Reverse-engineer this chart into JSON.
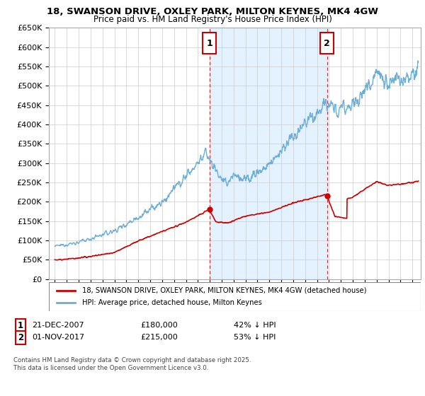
{
  "title1": "18, SWANSON DRIVE, OXLEY PARK, MILTON KEYNES, MK4 4GW",
  "title2": "Price paid vs. HM Land Registry's House Price Index (HPI)",
  "ylabel_ticks": [
    "£0",
    "£50K",
    "£100K",
    "£150K",
    "£200K",
    "£250K",
    "£300K",
    "£350K",
    "£400K",
    "£450K",
    "£500K",
    "£550K",
    "£600K",
    "£650K"
  ],
  "ytick_values": [
    0,
    50000,
    100000,
    150000,
    200000,
    250000,
    300000,
    350000,
    400000,
    450000,
    500000,
    550000,
    600000,
    650000
  ],
  "hpi_color": "#6baed6",
  "hpi_fill_color": "#c6dbef",
  "price_color": "#cc0000",
  "sale1_date": 2007.97,
  "sale1_price": 180000,
  "sale1_label": "1",
  "sale2_date": 2017.84,
  "sale2_price": 215000,
  "sale2_label": "2",
  "legend_property": "18, SWANSON DRIVE, OXLEY PARK, MILTON KEYNES, MK4 4GW (detached house)",
  "legend_hpi": "HPI: Average price, detached house, Milton Keynes",
  "copyright": "Contains HM Land Registry data © Crown copyright and database right 2025.\nThis data is licensed under the Open Government Licence v3.0.",
  "xmin": 1994.5,
  "xmax": 2025.7,
  "ymin": 0,
  "ymax": 650000,
  "background_color": "#ffffff",
  "grid_color": "#cccccc"
}
